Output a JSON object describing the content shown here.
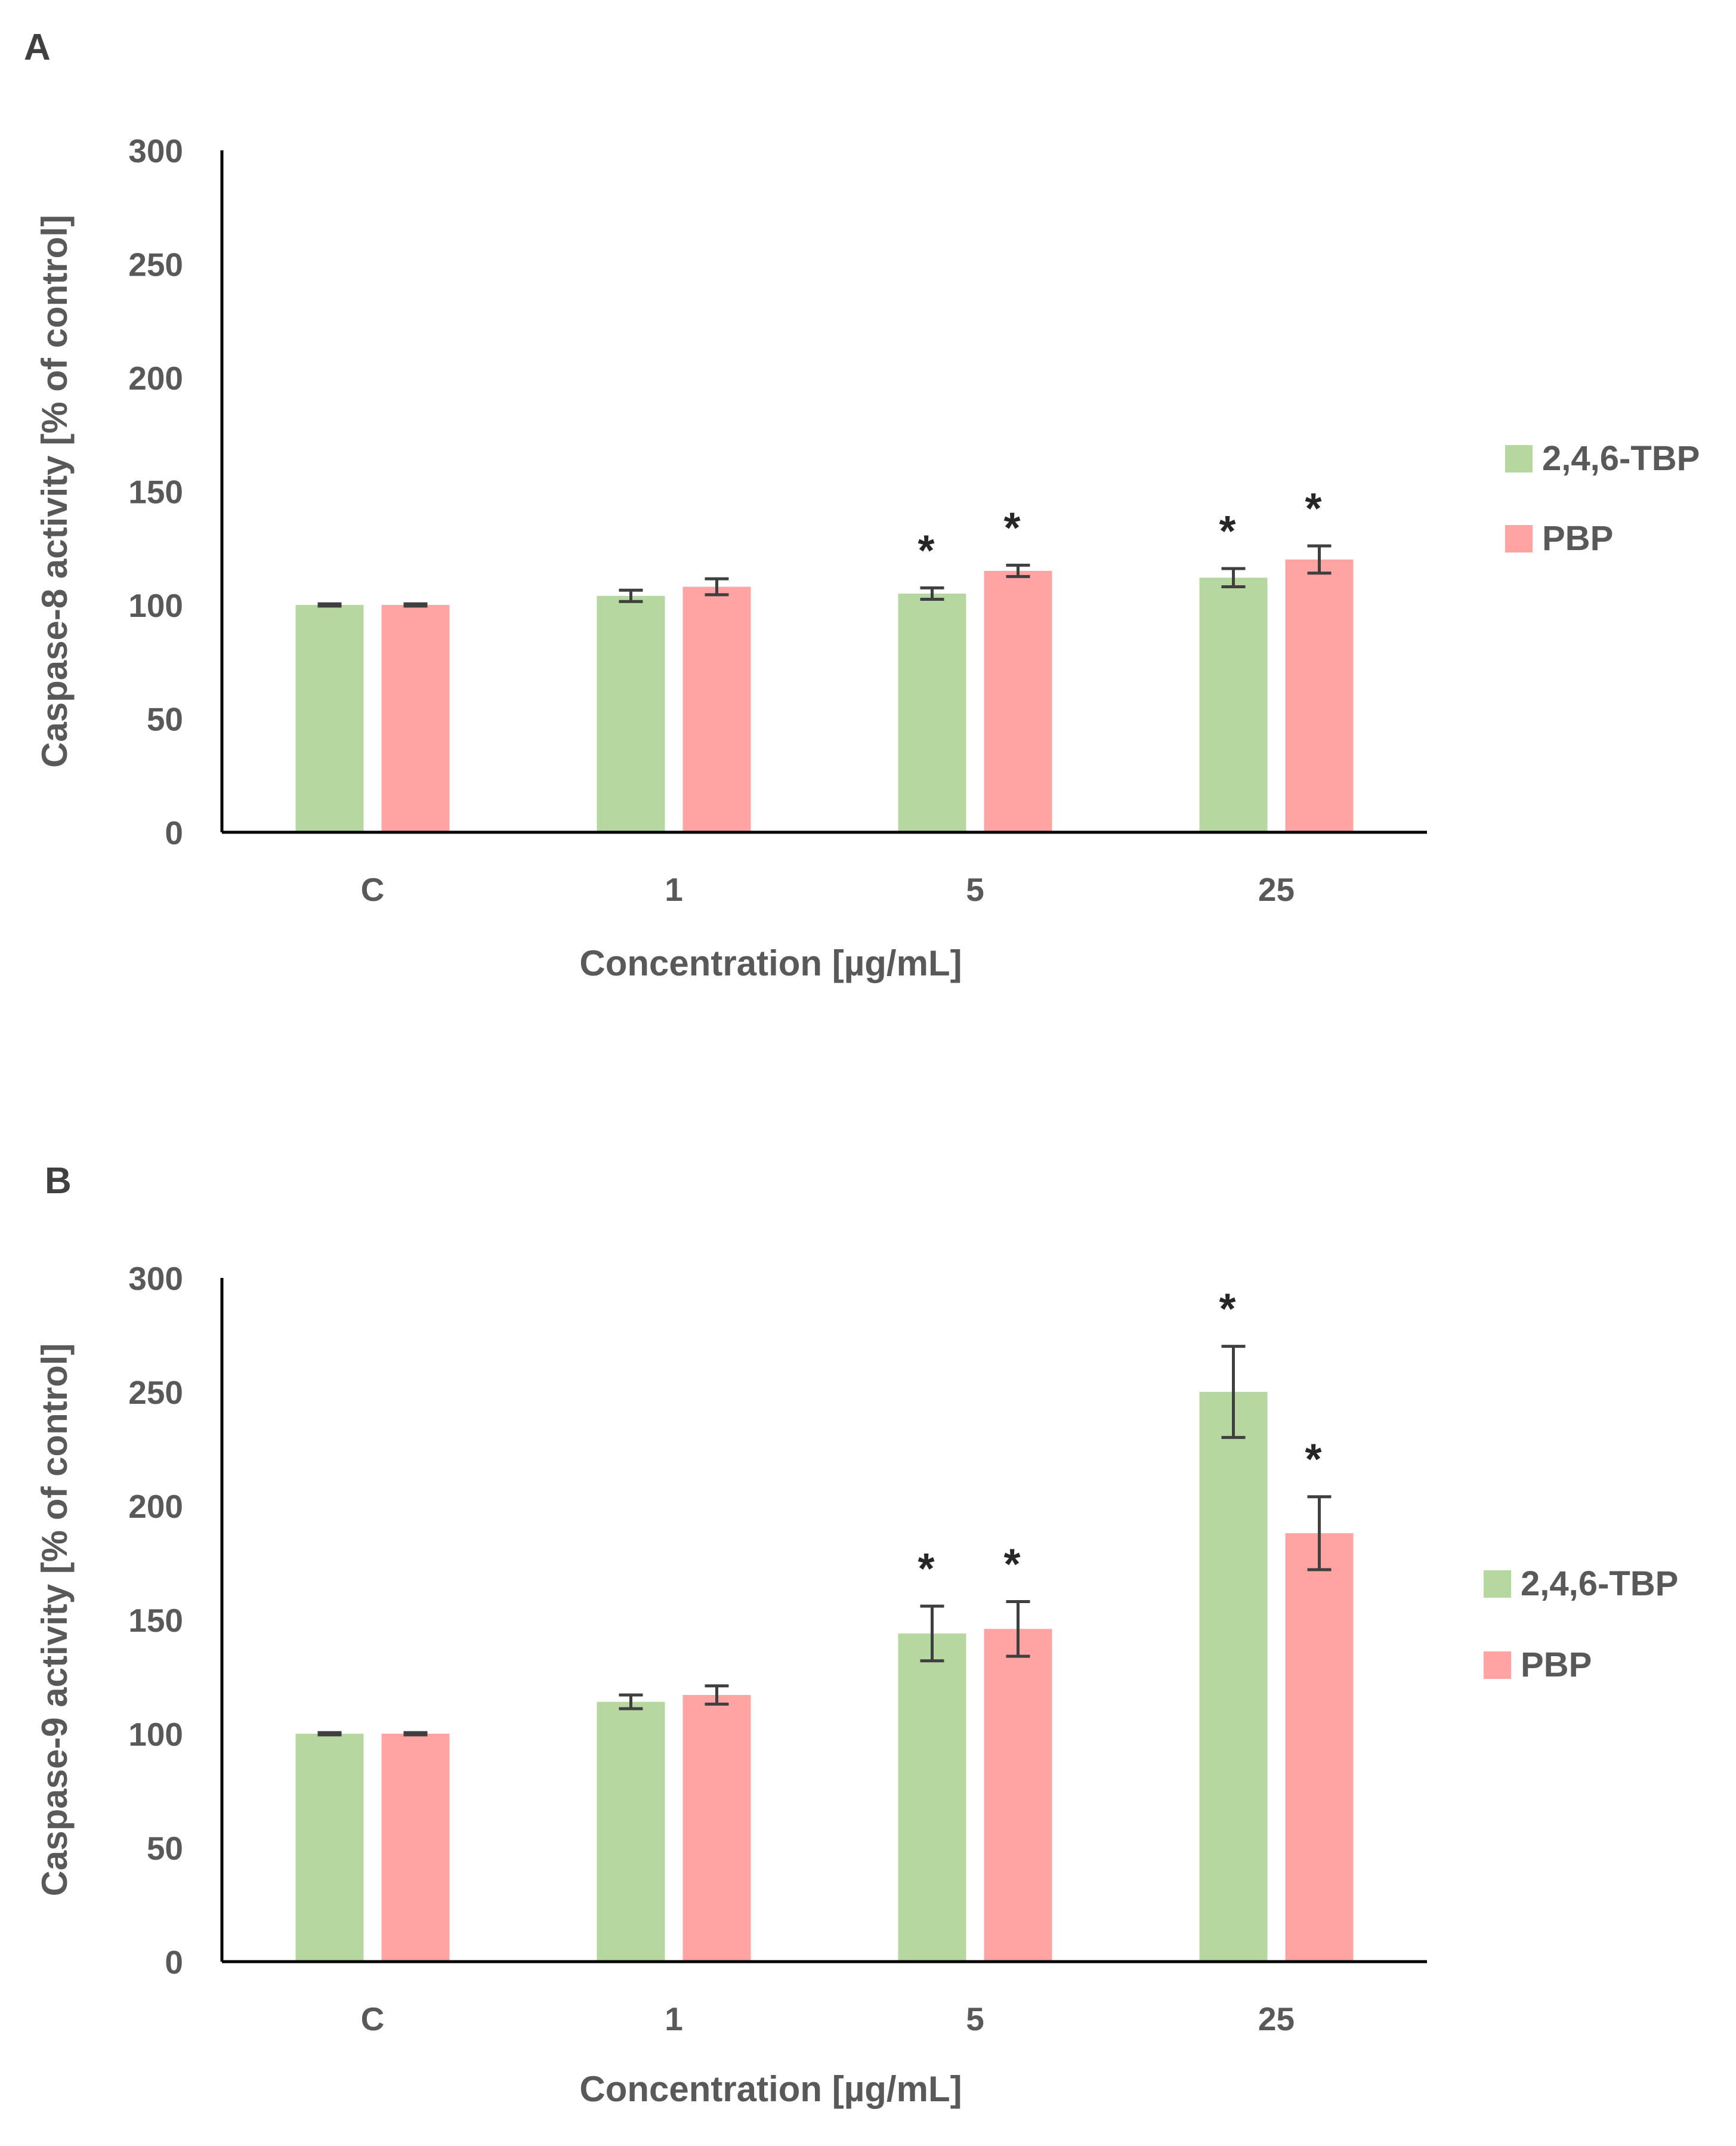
{
  "chart_data": [
    {
      "type": "bar",
      "panel": "A",
      "categories": [
        "C",
        "1",
        "5",
        "25"
      ],
      "xlabel": "Concentration [µg/mL]",
      "ylabel": "Caspase-8 activity [% of control]",
      "ylim": [
        0,
        300
      ],
      "yticks": [
        0,
        50,
        100,
        150,
        200,
        250,
        300
      ],
      "legend_position": "right",
      "series": [
        {
          "name": "2,4,6-TBP",
          "color": "#b6d7a0",
          "values": [
            100,
            104,
            105,
            112
          ],
          "errors": [
            0.5,
            2.5,
            2.5,
            4
          ],
          "significant": [
            false,
            false,
            true,
            true
          ]
        },
        {
          "name": "PBP",
          "color": "#ffa3a3",
          "values": [
            100,
            108,
            115,
            120
          ],
          "errors": [
            0.5,
            3.5,
            2.5,
            6
          ],
          "significant": [
            false,
            false,
            true,
            true
          ]
        }
      ],
      "significance_marker": "*"
    },
    {
      "type": "bar",
      "panel": "B",
      "categories": [
        "C",
        "1",
        "5",
        "25"
      ],
      "xlabel": "Concentration [µg/mL]",
      "ylabel": "Caspase-9 activity [% of control]",
      "ylim": [
        0,
        300
      ],
      "yticks": [
        0,
        50,
        100,
        150,
        200,
        250,
        300
      ],
      "legend_position": "right",
      "series": [
        {
          "name": "2,4,6-TBP",
          "color": "#b6d7a0",
          "values": [
            100,
            114,
            144,
            250
          ],
          "errors": [
            0.5,
            3,
            12,
            20
          ],
          "significant": [
            false,
            false,
            true,
            true
          ]
        },
        {
          "name": "PBP",
          "color": "#ffa3a3",
          "values": [
            100,
            117,
            146,
            188
          ],
          "errors": [
            0.5,
            4,
            12,
            16
          ],
          "significant": [
            false,
            false,
            true,
            true
          ]
        }
      ],
      "significance_marker": "*"
    }
  ]
}
